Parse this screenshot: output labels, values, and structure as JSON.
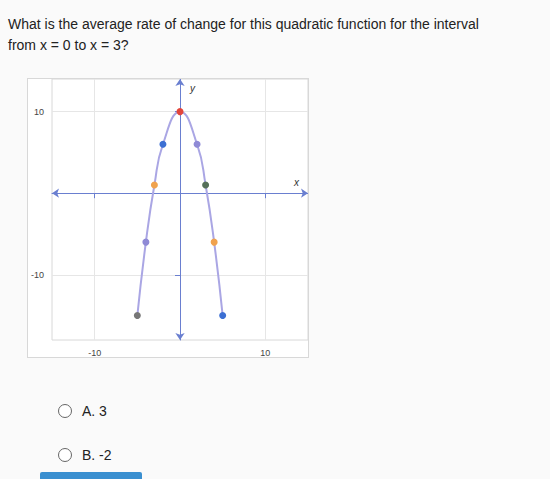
{
  "question": [
    "What is the average rate of change for this quadratic function for the interval",
    "from x = 0 to x = 3?"
  ],
  "options": [
    "A. 3",
    "B. -2"
  ],
  "chart_data": {
    "type": "line",
    "xlabel": "x",
    "ylabel": "y",
    "x": [
      -5,
      -4,
      -3,
      -2,
      0,
      2,
      3,
      4,
      5
    ],
    "values": [
      -15,
      -6,
      1,
      6,
      10,
      6,
      1,
      -6,
      -15
    ],
    "colors": [
      "#777777",
      "#8f8ad6",
      "#f0a24e",
      "#3c6fd3",
      "#e2453b",
      "#8f8ad6",
      "#55705a",
      "#f0a24e",
      "#3c6fd3"
    ],
    "color": "#aaa6e4",
    "marker": "circle",
    "xlim": [
      -15,
      15
    ],
    "ylim": [
      -18,
      14
    ],
    "xticks": [
      -10,
      10
    ],
    "yticks": [
      -10,
      10
    ],
    "grid": true
  }
}
